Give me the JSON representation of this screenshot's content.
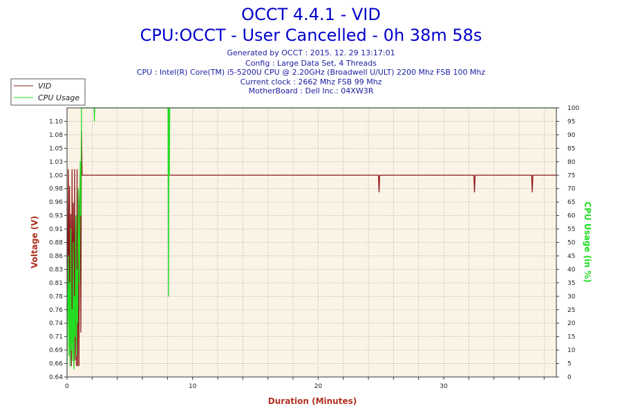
{
  "header": {
    "title": "OCCT 4.4.1 - VID",
    "subtitle": "CPU:OCCT - User Cancelled - 0h 38m 58s",
    "info_lines": [
      "Generated by OCCT : 2015. 12. 29 13:17:01",
      "Config : Large Data Set, 4 Threads",
      "CPU : Intel(R) Core(TM) i5-5200U CPU @ 2.20GHz (Broadwell U/ULT) 2200 Mhz FSB 100 Mhz",
      "Current clock : 2662 Mhz FSB 99 Mhz",
      "MotherBoard : Dell Inc.: 04XW3R"
    ]
  },
  "colors": {
    "vid": "#8b1a1a",
    "cpu_usage": "#22dd22",
    "plot_bg": "#fbf3e6",
    "grid": "#9a9a9a",
    "title": "#0000cc",
    "xlabel": "#b03020",
    "ylabel_left": "#b03020",
    "ylabel_right": "#22dd22"
  },
  "chart_data": {
    "type": "line",
    "title": "OCCT 4.4.1 - VID",
    "xlabel": "Duration (Minutes)",
    "ylabel": "Voltage (V)",
    "y2label": "CPU Usage (in %)",
    "xlim": [
      0,
      38.97
    ],
    "ylim": [
      0.64,
      1.12
    ],
    "y2lim": [
      0,
      100
    ],
    "x_ticks": [
      0,
      10,
      20,
      30
    ],
    "y_ticks": [
      "0.64",
      "0.66",
      "0.69",
      "0.71",
      "0.74",
      "0.76",
      "0.78",
      "0.81",
      "0.83",
      "0.86",
      "0.88",
      "0.91",
      "0.93",
      "0.96",
      "0.98",
      "1.00",
      "1.03",
      "1.05",
      "1.08",
      "1.10"
    ],
    "y2_ticks": [
      0,
      5,
      10,
      15,
      20,
      25,
      30,
      35,
      40,
      45,
      50,
      55,
      60,
      65,
      70,
      75,
      80,
      85,
      90,
      95,
      100
    ],
    "grid": true,
    "legend_position": "top-left",
    "series": [
      {
        "name": "VID",
        "axis": "left",
        "x": [
          0,
          0.1,
          0.15,
          0.2,
          0.25,
          0.3,
          0.35,
          0.4,
          0.45,
          0.5,
          0.55,
          0.6,
          0.65,
          0.7,
          0.75,
          0.8,
          0.85,
          0.9,
          0.95,
          1.0,
          1.05,
          1.1,
          1.15,
          1.2,
          1.3,
          2.5,
          24.8,
          24.85,
          24.9,
          32.4,
          32.45,
          32.5,
          37.0,
          37.05,
          37.1,
          38.97
        ],
        "y": [
          0.69,
          1.01,
          0.7,
          0.98,
          0.67,
          0.93,
          0.66,
          1.01,
          0.68,
          0.95,
          0.66,
          1.01,
          0.67,
          0.9,
          0.66,
          1.01,
          0.66,
          0.97,
          0.66,
          0.95,
          1.01,
          0.72,
          1.08,
          1.0,
          1.0,
          1.0,
          1.0,
          0.97,
          1.0,
          1.0,
          0.97,
          1.0,
          1.0,
          0.97,
          1.0,
          1.0
        ]
      },
      {
        "name": "CPU Usage",
        "axis": "right",
        "x": [
          0,
          0.1,
          0.15,
          0.2,
          0.25,
          0.3,
          0.35,
          0.4,
          0.45,
          0.5,
          0.55,
          0.6,
          0.65,
          0.7,
          0.75,
          0.8,
          0.85,
          0.9,
          0.95,
          1.0,
          1.05,
          1.1,
          1.15,
          1.2,
          2.15,
          2.18,
          2.2,
          2.25,
          8.05,
          8.08,
          8.1,
          8.12,
          8.15,
          8.18,
          8.2,
          38.97
        ],
        "y": [
          5,
          45,
          8,
          35,
          4,
          55,
          10,
          25,
          6,
          50,
          3,
          30,
          15,
          60,
          8,
          40,
          20,
          70,
          50,
          35,
          80,
          60,
          100,
          100,
          100,
          95,
          100,
          100,
          100,
          30,
          65,
          100,
          75,
          100,
          100,
          100
        ]
      }
    ]
  }
}
